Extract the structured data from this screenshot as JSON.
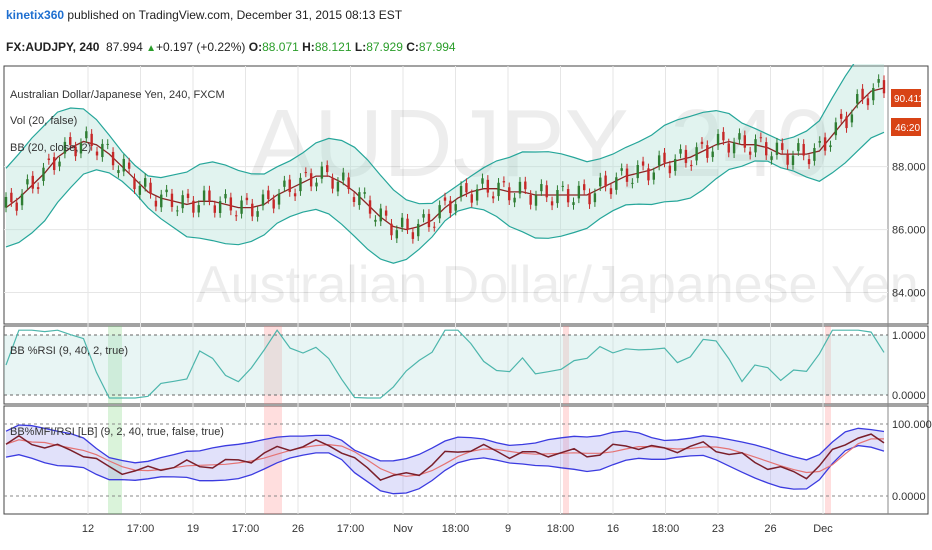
{
  "header": {
    "username": "kinetix360",
    "published_text": "published on TradingView.com, December 31, 2015 08:13 EST",
    "symbol": "FX:AUDJPY, 240",
    "last": "87.994",
    "change": "+0.197 (+0.22%)",
    "o_label": "O:",
    "o_value": "88.071",
    "h_label": "H:",
    "h_value": "88.121",
    "l_label": "L:",
    "l_value": "87.929",
    "c_label": "C:",
    "c_value": "87.994"
  },
  "watermark": {
    "ticker": "AUDJPY, 240",
    "name": "Australian Dollar/Japanese Yen"
  },
  "legend": {
    "title": "Australian Dollar/Japanese Yen, 240, FXCM",
    "vol": "Vol (20, false)",
    "bb": "BB (20, close, 2)",
    "rsi": "BB %RSI (9, 40, 2, true)",
    "mfi": "BB%MFI/RSI [LB] (9, 2, 40, true, false, true)"
  },
  "price_tags": {
    "last": "90.411",
    "countdown": "46:20"
  },
  "colors": {
    "candle_up": "#2e7d32",
    "candle_down": "#c62828",
    "bb_band": "#26a69a",
    "bb_mid": "#8b2525",
    "osc_line": "#4db6ac",
    "mfi_band": "#3b3be0",
    "mfi_line": "#7a1f2b",
    "mfi_signal": "#e57373",
    "price_tag": "#d84315"
  },
  "chart_data": {
    "type": "line",
    "title": "Australian Dollar/Japanese Yen, 240, FXCM",
    "x_ticks": [
      "12",
      "17:00",
      "19",
      "17:00",
      "26",
      "17:00",
      "Nov",
      "18:00",
      "9",
      "18:00",
      "16",
      "18:00",
      "23",
      "26",
      "Dec"
    ],
    "price_axis": {
      "ticks": [
        "84.000",
        "86.000",
        "88.000"
      ],
      "ylim": [
        83.0,
        91.2
      ]
    },
    "rsi_axis": {
      "ticks": [
        "0.0000",
        "1.0000"
      ],
      "ylim": [
        -0.15,
        1.15
      ]
    },
    "mfi_axis": {
      "ticks": [
        "0.0000",
        "100.0000"
      ],
      "ylim": [
        -25,
        125
      ]
    },
    "series": [
      {
        "name": "BB (20, close, 2)",
        "pane": "price",
        "values": [
          86.7,
          87.0,
          87.4,
          87.8,
          88.3,
          88.6,
          88.8,
          88.7,
          88.4,
          88.0,
          87.6,
          87.2,
          87.0,
          86.9,
          86.8,
          86.9,
          86.9,
          86.8,
          86.7,
          86.7,
          86.8,
          87.1,
          87.3,
          87.5,
          87.7,
          87.7,
          87.5,
          87.2,
          86.8,
          86.4,
          86.1,
          86.0,
          86.1,
          86.3,
          86.7,
          87.0,
          87.2,
          87.3,
          87.3,
          87.2,
          87.2,
          87.1,
          87.1,
          87.1,
          87.1,
          87.1,
          87.3,
          87.5,
          87.7,
          87.8,
          87.9,
          88.1,
          88.2,
          88.3,
          88.5,
          88.7,
          88.8,
          88.7,
          88.7,
          88.6,
          88.4,
          88.4,
          88.4,
          88.5,
          89.0,
          89.5,
          90.0,
          90.4,
          90.5
        ]
      },
      {
        "name": "BB%MFI/RSI [LB] (9, 2, 40, true, false, true)",
        "pane": "mfi",
        "values": [
          72,
          78,
          75,
          70,
          66,
          64,
          60,
          48,
          38,
          36,
          34,
          36,
          40,
          42,
          44,
          42,
          44,
          46,
          48,
          52,
          58,
          64,
          68,
          70,
          72,
          72,
          64,
          48,
          38,
          28,
          26,
          28,
          34,
          44,
          56,
          64,
          66,
          66,
          62,
          58,
          58,
          58,
          60,
          60,
          60,
          58,
          60,
          66,
          70,
          70,
          66,
          64,
          66,
          68,
          70,
          66,
          60,
          54,
          48,
          42,
          36,
          32,
          30,
          40,
          60,
          76,
          82,
          80,
          76
        ]
      }
    ]
  }
}
